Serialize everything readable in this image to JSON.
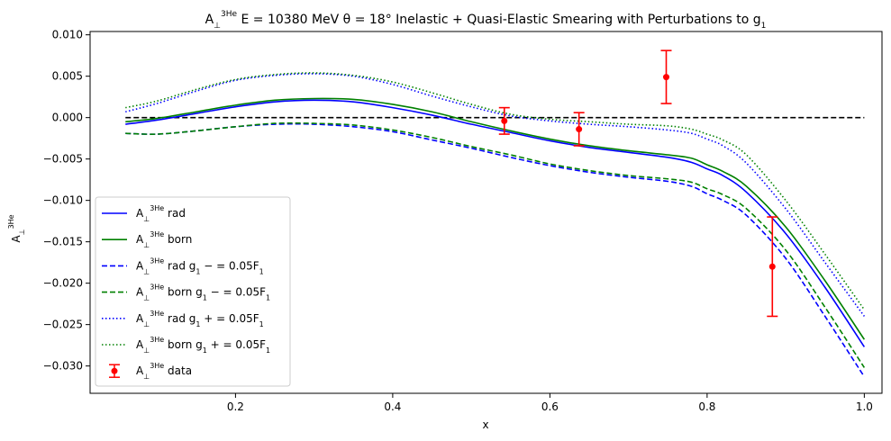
{
  "chart_data": {
    "type": "line",
    "title": {
      "prefix": "A",
      "sub": "⊥",
      "sup": "3He",
      "rest": " E = 10380 MeV θ = 18° Inelastic + Quasi-Elastic Smearing with Perturbations to g",
      "tail_sub": "1"
    },
    "xlabel": "x",
    "ylabel": {
      "base": "A",
      "sub": "⊥",
      "sup": "3He"
    },
    "xlim": [
      0.015,
      1.0225
    ],
    "ylim": [
      -0.0333,
      0.0104
    ],
    "xticks": [
      0.2,
      0.4,
      0.6,
      0.8,
      1.0
    ],
    "xtick_labels": [
      "0.2",
      "0.4",
      "0.6",
      "0.8",
      "1.0"
    ],
    "yticks": [
      0.01,
      0.005,
      0.0,
      -0.005,
      -0.01,
      -0.015,
      -0.02,
      -0.025,
      -0.03
    ],
    "ytick_labels": [
      "0.010",
      "0.005",
      "0.000",
      "−0.005",
      "−0.010",
      "−0.015",
      "−0.020",
      "−0.025",
      "−0.030"
    ],
    "reference_line": {
      "y": 0.0,
      "color": "#000000",
      "style": "dashed"
    },
    "legend": {
      "placement": "lower-left"
    },
    "series": [
      {
        "key": "rad",
        "legend": {
          "base": "A",
          "sub": "⊥",
          "sup": "3He",
          "text": " rad"
        },
        "color": "#0000ff",
        "style": "solid",
        "x": [
          0.06,
          0.1,
          0.15,
          0.2,
          0.25,
          0.3,
          0.35,
          0.4,
          0.45,
          0.5,
          0.55,
          0.6,
          0.65,
          0.7,
          0.75,
          0.78,
          0.8,
          0.82,
          0.85,
          0.9,
          0.95,
          1.0
        ],
        "y": [
          -0.0008,
          -0.0003,
          0.0005,
          0.0013,
          0.0019,
          0.0021,
          0.0019,
          0.0012,
          0.0003,
          -0.0008,
          -0.0018,
          -0.0028,
          -0.0036,
          -0.0042,
          -0.0048,
          -0.0054,
          -0.0062,
          -0.007,
          -0.009,
          -0.014,
          -0.0205,
          -0.0277
        ]
      },
      {
        "key": "born",
        "legend": {
          "base": "A",
          "sub": "⊥",
          "sup": "3He",
          "text": " born"
        },
        "color": "#008000",
        "style": "solid",
        "x": [
          0.06,
          0.1,
          0.15,
          0.2,
          0.25,
          0.3,
          0.35,
          0.4,
          0.45,
          0.5,
          0.55,
          0.6,
          0.65,
          0.7,
          0.75,
          0.78,
          0.8,
          0.82,
          0.85,
          0.9,
          0.95,
          1.0
        ],
        "y": [
          -0.0005,
          -0.0001,
          0.0007,
          0.0015,
          0.0021,
          0.0023,
          0.0022,
          0.0016,
          0.0007,
          -0.0005,
          -0.0016,
          -0.0026,
          -0.0034,
          -0.004,
          -0.0045,
          -0.0049,
          -0.0057,
          -0.0065,
          -0.0083,
          -0.0132,
          -0.0197,
          -0.0268
        ]
      },
      {
        "key": "rad_minus",
        "legend": {
          "base": "A",
          "sub": "⊥",
          "sup": "3He",
          "text": " rad g",
          "tail_sub": "1",
          "tail": " − = 0.05F",
          "tail_sub2": "1"
        },
        "color": "#0000ff",
        "style": "dashed",
        "x": [
          0.06,
          0.1,
          0.15,
          0.2,
          0.25,
          0.3,
          0.35,
          0.4,
          0.45,
          0.5,
          0.55,
          0.6,
          0.65,
          0.7,
          0.75,
          0.78,
          0.8,
          0.82,
          0.85,
          0.9,
          0.95,
          1.0
        ],
        "y": [
          -0.0019,
          -0.002,
          -0.0016,
          -0.0011,
          -0.0008,
          -0.0008,
          -0.0011,
          -0.0017,
          -0.0027,
          -0.0037,
          -0.0048,
          -0.0058,
          -0.0066,
          -0.0072,
          -0.0077,
          -0.0083,
          -0.0092,
          -0.01,
          -0.0118,
          -0.017,
          -0.024,
          -0.0313
        ]
      },
      {
        "key": "born_minus",
        "legend": {
          "base": "A",
          "sub": "⊥",
          "sup": "3He",
          "text": " born g",
          "tail_sub": "1",
          "tail": " − = 0.05F",
          "tail_sub2": "1"
        },
        "color": "#008000",
        "style": "dashed",
        "x": [
          0.06,
          0.1,
          0.15,
          0.2,
          0.25,
          0.3,
          0.35,
          0.4,
          0.45,
          0.5,
          0.55,
          0.6,
          0.65,
          0.7,
          0.75,
          0.78,
          0.8,
          0.82,
          0.85,
          0.9,
          0.95,
          1.0
        ],
        "y": [
          -0.0019,
          -0.002,
          -0.0016,
          -0.0011,
          -0.0007,
          -0.0007,
          -0.0009,
          -0.0015,
          -0.0024,
          -0.0035,
          -0.0045,
          -0.0056,
          -0.0064,
          -0.007,
          -0.0074,
          -0.0078,
          -0.0086,
          -0.0093,
          -0.011,
          -0.016,
          -0.0229,
          -0.0302
        ]
      },
      {
        "key": "rad_plus",
        "legend": {
          "base": "A",
          "sub": "⊥",
          "sup": "3He",
          "text": " rad g",
          "tail_sub": "1",
          "tail": " + = 0.05F",
          "tail_sub2": "1"
        },
        "color": "#0000ff",
        "style": "dotted",
        "x": [
          0.06,
          0.1,
          0.15,
          0.2,
          0.25,
          0.3,
          0.35,
          0.4,
          0.45,
          0.5,
          0.55,
          0.6,
          0.65,
          0.7,
          0.75,
          0.78,
          0.8,
          0.82,
          0.85,
          0.9,
          0.95,
          1.0
        ],
        "y": [
          0.0007,
          0.0017,
          0.0032,
          0.0045,
          0.0051,
          0.0053,
          0.005,
          0.004,
          0.0026,
          0.0013,
          0.0002,
          -0.0004,
          -0.0008,
          -0.0011,
          -0.0015,
          -0.0019,
          -0.0026,
          -0.0034,
          -0.0055,
          -0.011,
          -0.0175,
          -0.024
        ]
      },
      {
        "key": "born_plus",
        "legend": {
          "base": "A",
          "sub": "⊥",
          "sup": "3He",
          "text": " born g",
          "tail_sub": "1",
          "tail": " + = 0.05F",
          "tail_sub2": "1"
        },
        "color": "#008000",
        "style": "dotted",
        "x": [
          0.06,
          0.1,
          0.15,
          0.2,
          0.25,
          0.3,
          0.35,
          0.4,
          0.45,
          0.5,
          0.55,
          0.6,
          0.65,
          0.7,
          0.75,
          0.78,
          0.8,
          0.82,
          0.85,
          0.9,
          0.95,
          1.0
        ],
        "y": [
          0.0012,
          0.002,
          0.0034,
          0.0046,
          0.0052,
          0.0054,
          0.0051,
          0.0043,
          0.003,
          0.0016,
          0.0004,
          -0.0002,
          -0.0005,
          -0.0008,
          -0.001,
          -0.0014,
          -0.002,
          -0.0027,
          -0.0045,
          -0.01,
          -0.0165,
          -0.0232
        ]
      }
    ],
    "data_points": {
      "legend": {
        "base": "A",
        "sub": "⊥",
        "sup": "3He",
        "text": " data"
      },
      "color": "#ff0000",
      "x": [
        0.542,
        0.637,
        0.748,
        0.883
      ],
      "y": [
        -0.0004,
        -0.0014,
        0.0049,
        -0.018
      ],
      "yerr": [
        0.0016,
        0.002,
        0.0032,
        0.006
      ]
    }
  }
}
